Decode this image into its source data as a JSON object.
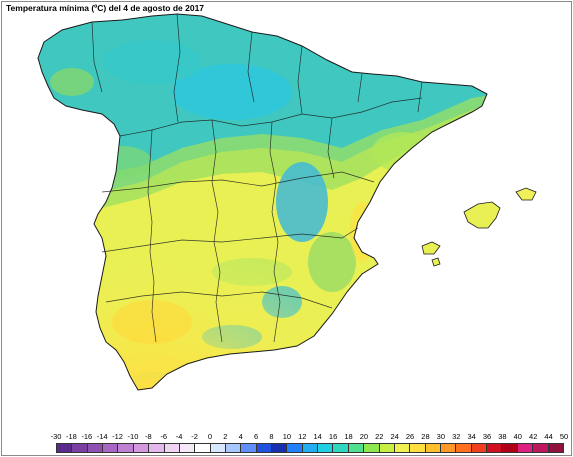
{
  "map": {
    "title": "Temperatura mínima (ºC) del 4 de agosto de 2017",
    "region": "Spain",
    "colors": {
      "land_cool": "#3cc8c8",
      "land_mid": "#8fe060",
      "land_warm": "#f0f05a",
      "land_hot": "#ffe030",
      "border": "#1a1a1a",
      "sea": "#ffffff"
    }
  },
  "legend": {
    "labels": [
      "-30",
      "-18",
      "-16",
      "-14",
      "-12",
      "-10",
      "-8",
      "-6",
      "-4",
      "-2",
      "0",
      "2",
      "4",
      "6",
      "8",
      "10",
      "12",
      "14",
      "16",
      "18",
      "20",
      "22",
      "24",
      "26",
      "28",
      "30",
      "32",
      "34",
      "36",
      "38",
      "40",
      "42",
      "44",
      "50"
    ],
    "colors": [
      "#5a2a8a",
      "#7a3fa0",
      "#9050b4",
      "#a868c4",
      "#c080d4",
      "#d49ae0",
      "#e4b8ec",
      "#f0d4f4",
      "#f6e8f8",
      "#ffffff",
      "#d8e8ff",
      "#a8c8ff",
      "#6090ff",
      "#2050e0",
      "#1830b0",
      "#2080ff",
      "#20b0f0",
      "#20d0e0",
      "#30d8c0",
      "#50e090",
      "#90e850",
      "#c8f040",
      "#f0f050",
      "#ffe040",
      "#ffc030",
      "#ff9a28",
      "#ff7020",
      "#f04020",
      "#d01020",
      "#b00018",
      "#e02080",
      "#c01860",
      "#901040"
    ]
  }
}
